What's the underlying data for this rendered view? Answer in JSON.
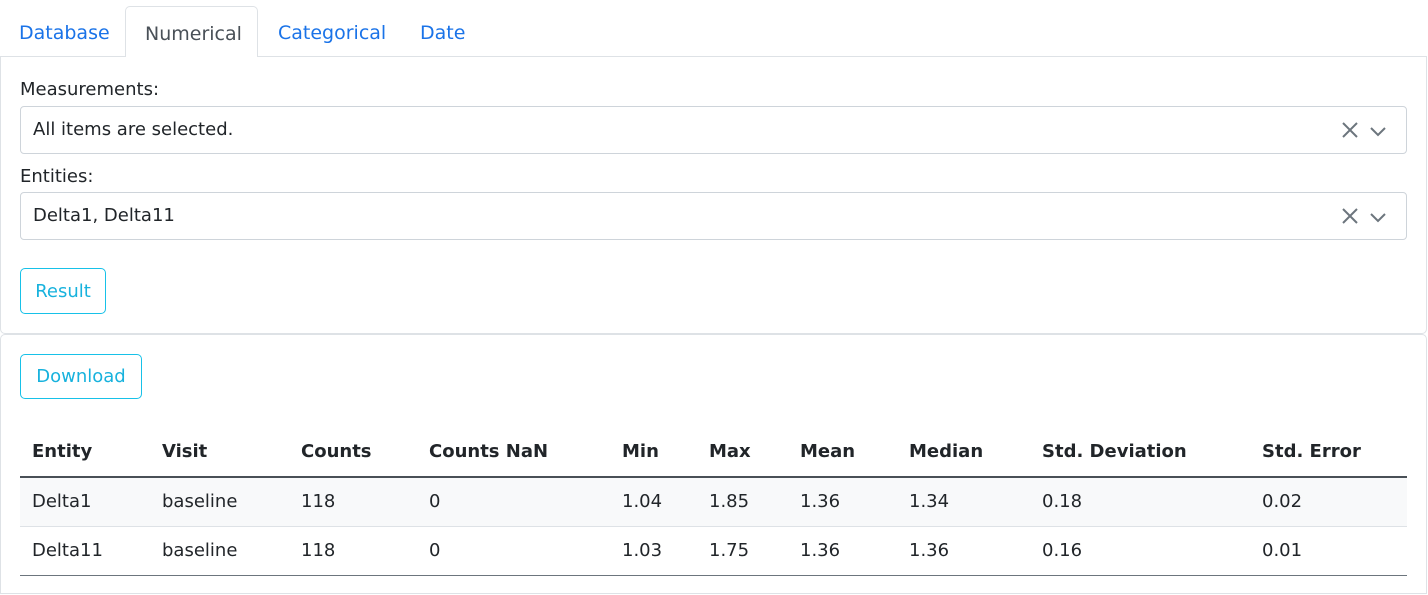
{
  "tabs": [
    {
      "label": "Database",
      "active": false
    },
    {
      "label": "Numerical",
      "active": true
    },
    {
      "label": "Categorical",
      "active": false
    },
    {
      "label": "Date",
      "active": false
    }
  ],
  "filters": {
    "measurements": {
      "label": "Measurements:",
      "value": "All items are selected."
    },
    "entities": {
      "label": "Entities:",
      "value": "Delta1, Delta11"
    },
    "result_button": "Result"
  },
  "results": {
    "download_button": "Download",
    "columns": [
      "Entity",
      "Visit",
      "Counts",
      "Counts NaN",
      "Min",
      "Max",
      "Mean",
      "Median",
      "Std. Deviation",
      "Std. Error"
    ],
    "rows": [
      [
        "Delta1",
        "baseline",
        "118",
        "0",
        "1.04",
        "1.85",
        "1.36",
        "1.34",
        "0.18",
        "0.02"
      ],
      [
        "Delta11",
        "baseline",
        "118",
        "0",
        "1.03",
        "1.75",
        "1.36",
        "1.36",
        "0.16",
        "0.01"
      ]
    ]
  },
  "colors": {
    "link": "#1a73e8",
    "accent": "#17c1e8"
  },
  "icons": {
    "clear": "close-icon",
    "dropdown": "chevron-down-icon"
  }
}
